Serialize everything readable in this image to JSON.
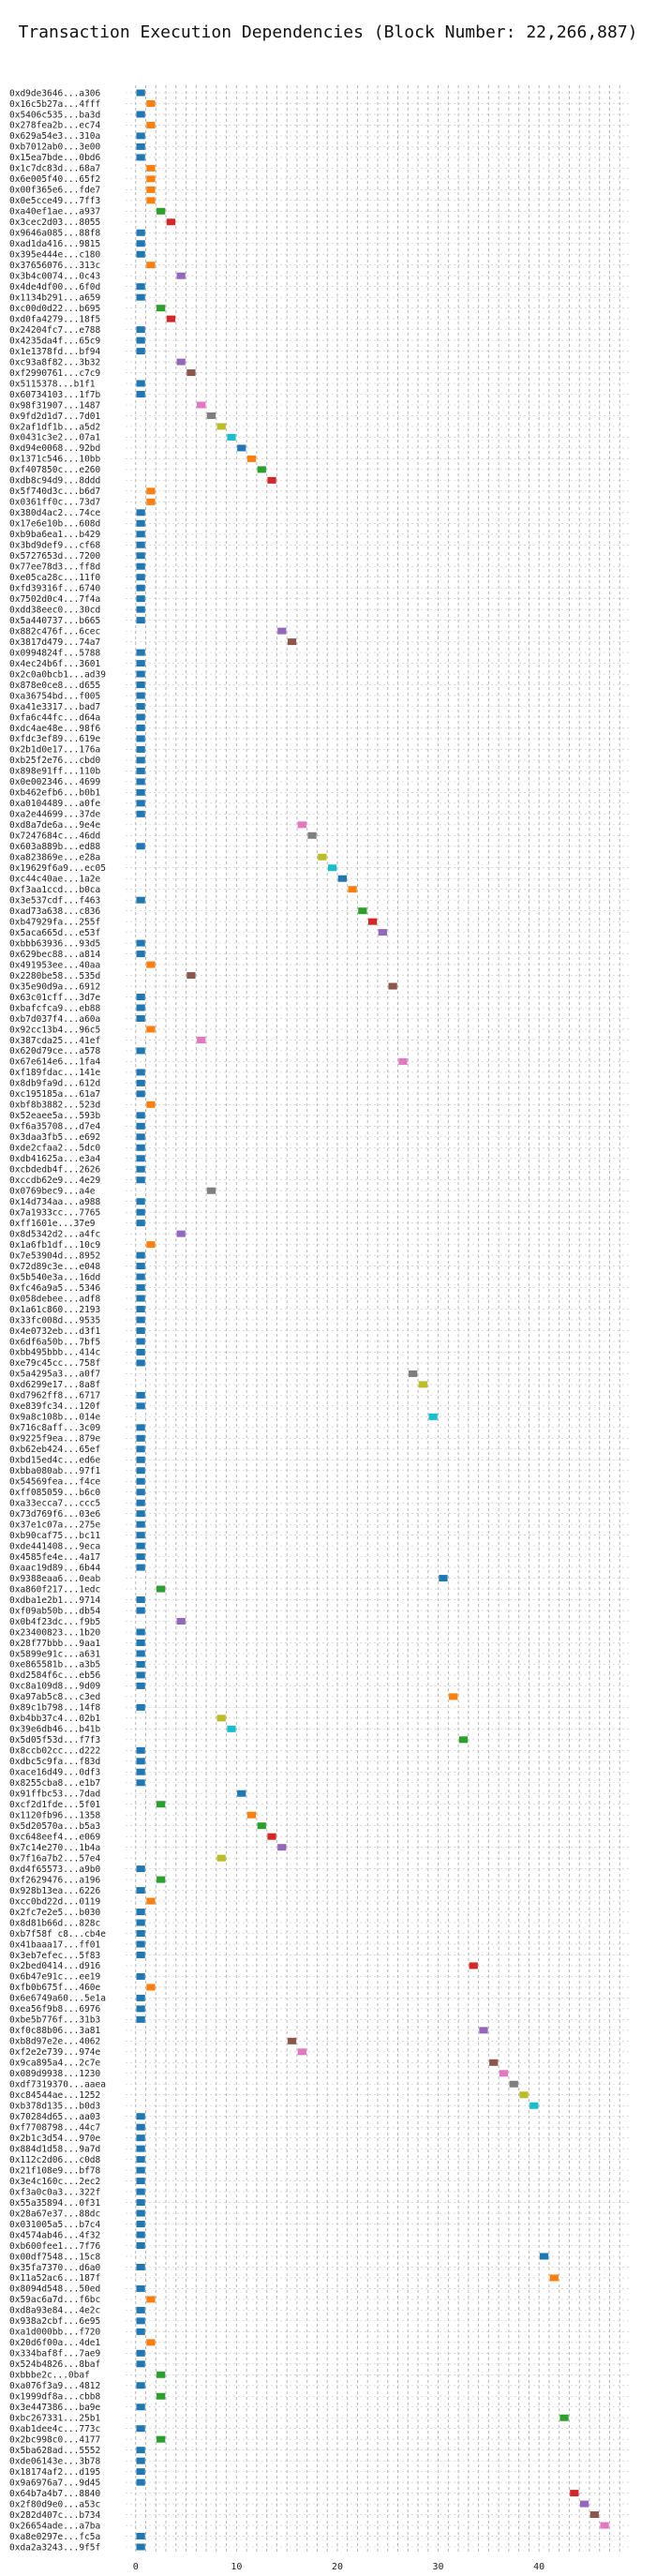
{
  "chart_data": {
    "type": "bar",
    "title": "Transaction Execution Dependencies (Block Number: 22,266,887)",
    "xlabel": "",
    "ylabel": "",
    "xlim": [
      -1,
      49
    ],
    "xticks": [
      0,
      10,
      20,
      30,
      40
    ],
    "grid": true,
    "palette": [
      "#1f77b4",
      "#ff7f0e",
      "#2ca02c",
      "#d62728",
      "#9467bd",
      "#8c564b",
      "#e377c2",
      "#7f7f7f",
      "#bcbd22",
      "#17becf"
    ],
    "transactions": [
      {
        "hash": "0xd9de3646...a306",
        "start": 0
      },
      {
        "hash": "0x16c5b27a...4fff",
        "start": 1
      },
      {
        "hash": "0x5406c535...ba3d",
        "start": 0
      },
      {
        "hash": "0x278fea2b...ec74",
        "start": 1
      },
      {
        "hash": "0x629a54e3...310a",
        "start": 0
      },
      {
        "hash": "0xb7012ab0...3e00",
        "start": 0
      },
      {
        "hash": "0x15ea7bde...0bd6",
        "start": 0
      },
      {
        "hash": "0x1c7dc83d...68a7",
        "start": 1
      },
      {
        "hash": "0x6e005f40...65f2",
        "start": 1
      },
      {
        "hash": "0x00f365e6...fde7",
        "start": 1
      },
      {
        "hash": "0x0e5cce49...7ff3",
        "start": 1
      },
      {
        "hash": "0xa40ef1ae...a937",
        "start": 2
      },
      {
        "hash": "0x3cec2d03...8055",
        "start": 3
      },
      {
        "hash": "0x9646a085...88f8",
        "start": 0
      },
      {
        "hash": "0xad1da416...9815",
        "start": 0
      },
      {
        "hash": "0x395e444e...c180",
        "start": 0
      },
      {
        "hash": "0x37656076...313c",
        "start": 1
      },
      {
        "hash": "0x3b4c0074...0c43",
        "start": 4
      },
      {
        "hash": "0x4de4df00...6f0d",
        "start": 0
      },
      {
        "hash": "0x1134b291...a659",
        "start": 0
      },
      {
        "hash": "0xc00d0d22...b695",
        "start": 2
      },
      {
        "hash": "0xd0fa4279...18f5",
        "start": 3
      },
      {
        "hash": "0x24204fc7...e788",
        "start": 0
      },
      {
        "hash": "0x4235da4f...65c9",
        "start": 0
      },
      {
        "hash": "0x1e1378fd...bf94",
        "start": 0
      },
      {
        "hash": "0xc93a8f82...3b32",
        "start": 4
      },
      {
        "hash": "0xf2990761...c7c9",
        "start": 5
      },
      {
        "hash": "0x5115378...b1f1",
        "start": 0
      },
      {
        "hash": "0x60734103...1f7b",
        "start": 0
      },
      {
        "hash": "0x98f31907...1487",
        "start": 6
      },
      {
        "hash": "0x9fd2d1d7...7d01",
        "start": 7
      },
      {
        "hash": "0x2af1df1b...a5d2",
        "start": 8
      },
      {
        "hash": "0x0431c3e2...07a1",
        "start": 9
      },
      {
        "hash": "0xd94e0068...92bd",
        "start": 10
      },
      {
        "hash": "0x1371c546...10bb",
        "start": 11
      },
      {
        "hash": "0xf407850c...e260",
        "start": 12
      },
      {
        "hash": "0xdb8c94d9...8ddd",
        "start": 13
      },
      {
        "hash": "0x5f740d3c...b6d7",
        "start": 1
      },
      {
        "hash": "0x0361ff0c...73d7",
        "start": 1
      },
      {
        "hash": "0x380d4ac2...74ce",
        "start": 0
      },
      {
        "hash": "0x17e6e10b...608d",
        "start": 0
      },
      {
        "hash": "0xb9ba6ea1...b429",
        "start": 0
      },
      {
        "hash": "0x3bd9def9...cf68",
        "start": 0
      },
      {
        "hash": "0x5727653d...7200",
        "start": 0
      },
      {
        "hash": "0x77ee78d3...ff8d",
        "start": 0
      },
      {
        "hash": "0xe05ca28c...11f0",
        "start": 0
      },
      {
        "hash": "0xfd39316f...6740",
        "start": 0
      },
      {
        "hash": "0x7502d0c4...7f4a",
        "start": 0
      },
      {
        "hash": "0xdd38eec0...30cd",
        "start": 0
      },
      {
        "hash": "0x5a440737...b665",
        "start": 0
      },
      {
        "hash": "0x882c476f...6cec",
        "start": 14
      },
      {
        "hash": "0x3817d479...74a7",
        "start": 15
      },
      {
        "hash": "0x0994824f...5788",
        "start": 0
      },
      {
        "hash": "0x4ec24b6f...3601",
        "start": 0
      },
      {
        "hash": "0x2c0a0bcb1...ad39",
        "start": 0
      },
      {
        "hash": "0x878e0ce8...d655",
        "start": 0
      },
      {
        "hash": "0xa36754bd...f005",
        "start": 0
      },
      {
        "hash": "0xa41e3317...bad7",
        "start": 0
      },
      {
        "hash": "0xfa6c44fc...d64a",
        "start": 0
      },
      {
        "hash": "0xdc4ae48e...98f6",
        "start": 0
      },
      {
        "hash": "0xfdc3ef89...619e",
        "start": 0
      },
      {
        "hash": "0x2b1d0e17...176a",
        "start": 0
      },
      {
        "hash": "0xb25f2e76...cbd0",
        "start": 0
      },
      {
        "hash": "0x898e91ff...110b",
        "start": 0
      },
      {
        "hash": "0x0e002346...4699",
        "start": 0
      },
      {
        "hash": "0xb462efb6...b0b1",
        "start": 0
      },
      {
        "hash": "0xa0104489...a0fe",
        "start": 0
      },
      {
        "hash": "0xa2e44699...37de",
        "start": 0
      },
      {
        "hash": "0xd8a7de6a...9e4e",
        "start": 16
      },
      {
        "hash": "0x7247684c...46dd",
        "start": 17
      },
      {
        "hash": "0x603a889b...ed88",
        "start": 0
      },
      {
        "hash": "0xa823869e...e28a",
        "start": 18
      },
      {
        "hash": "0x19629f6a9...ec05",
        "start": 19
      },
      {
        "hash": "0xc44c40ae...1a2e",
        "start": 20
      },
      {
        "hash": "0xf3aa1ccd...b0ca",
        "start": 21
      },
      {
        "hash": "0x3e537cdf...f463",
        "start": 0
      },
      {
        "hash": "0xad73a638...c836",
        "start": 22
      },
      {
        "hash": "0xb47929fa...255f",
        "start": 23
      },
      {
        "hash": "0x5aca665d...e53f",
        "start": 24
      },
      {
        "hash": "0xbbb63936...93d5",
        "start": 0
      },
      {
        "hash": "0x629bec88...a814",
        "start": 0
      },
      {
        "hash": "0x491953ee...40aa",
        "start": 1
      },
      {
        "hash": "0x2280be58...535d",
        "start": 5
      },
      {
        "hash": "0x35e90d9a...6912",
        "start": 25
      },
      {
        "hash": "0x63c01cff...3d7e",
        "start": 0
      },
      {
        "hash": "0xbafcfca9...eb88",
        "start": 0
      },
      {
        "hash": "0xb7d037f4...a60a",
        "start": 0
      },
      {
        "hash": "0x92cc13b4...96c5",
        "start": 1
      },
      {
        "hash": "0x387cda25...41ef",
        "start": 6
      },
      {
        "hash": "0x620d79ce...a578",
        "start": 0
      },
      {
        "hash": "0x67e614e6...1fa4",
        "start": 26
      },
      {
        "hash": "0xf189fdac...141e",
        "start": 0
      },
      {
        "hash": "0x8db9fa9d...612d",
        "start": 0
      },
      {
        "hash": "0xc195185a...61a7",
        "start": 0
      },
      {
        "hash": "0xbf8b3882...523d",
        "start": 1
      },
      {
        "hash": "0x52eaee5a...593b",
        "start": 0
      },
      {
        "hash": "0xf6a35708...d7e4",
        "start": 0
      },
      {
        "hash": "0x3daa3fb5...e692",
        "start": 0
      },
      {
        "hash": "0xde2cfaa2...5dc0",
        "start": 0
      },
      {
        "hash": "0xdb41625a...e3a4",
        "start": 0
      },
      {
        "hash": "0xcbdedb4f...2626",
        "start": 0
      },
      {
        "hash": "0xccdb62e9...4e29",
        "start": 0
      },
      {
        "hash": "0x0769bec9...a4e",
        "start": 7
      },
      {
        "hash": "0x14d734aa...a988",
        "start": 0
      },
      {
        "hash": "0x7a1933cc...7765",
        "start": 0
      },
      {
        "hash": "0xff1601e...37e9",
        "start": 0
      },
      {
        "hash": "0x8d5342d2...a4fc",
        "start": 4
      },
      {
        "hash": "0x1a6fb1df...10c9",
        "start": 1
      },
      {
        "hash": "0x7e53904d...8952",
        "start": 0
      },
      {
        "hash": "0x72d89c3e...e048",
        "start": 0
      },
      {
        "hash": "0x5b540e3a...16dd",
        "start": 0
      },
      {
        "hash": "0xfc46a9a5...5346",
        "start": 0
      },
      {
        "hash": "0x058debee...adf8",
        "start": 0
      },
      {
        "hash": "0x1a61c860...2193",
        "start": 0
      },
      {
        "hash": "0x33fc008d...9535",
        "start": 0
      },
      {
        "hash": "0x4e0732eb...d3f1",
        "start": 0
      },
      {
        "hash": "0x6df6a50b...7bf5",
        "start": 0
      },
      {
        "hash": "0xbb495bbb...414c",
        "start": 0
      },
      {
        "hash": "0xe79c45cc...758f",
        "start": 0
      },
      {
        "hash": "0x5a4295a3...a0f7",
        "start": 27
      },
      {
        "hash": "0xd6299e17...8a8f",
        "start": 28
      },
      {
        "hash": "0xd7962ff8...6717",
        "start": 0
      },
      {
        "hash": "0xe839fc34...120f",
        "start": 0
      },
      {
        "hash": "0x9a8c108b...014e",
        "start": 29
      },
      {
        "hash": "0x716c8aff...3c09",
        "start": 0
      },
      {
        "hash": "0x9225f9ea...879e",
        "start": 0
      },
      {
        "hash": "0xb62eb424...65ef",
        "start": 0
      },
      {
        "hash": "0xbd15ed4c...ed6e",
        "start": 0
      },
      {
        "hash": "0xbba080ab...97f1",
        "start": 0
      },
      {
        "hash": "0x54569fea...f4ce",
        "start": 0
      },
      {
        "hash": "0xff085059...b6c0",
        "start": 0
      },
      {
        "hash": "0xa33ecca7...ccc5",
        "start": 0
      },
      {
        "hash": "0x73d769f6...03e6",
        "start": 0
      },
      {
        "hash": "0x37e1c07a...275e",
        "start": 0
      },
      {
        "hash": "0xb90caf75...bc11",
        "start": 0
      },
      {
        "hash": "0xde441408...9eca",
        "start": 0
      },
      {
        "hash": "0x4585fe4e...4a17",
        "start": 0
      },
      {
        "hash": "0xaac19d89...6b44",
        "start": 0
      },
      {
        "hash": "0x9388eaa6...0eab",
        "start": 30
      },
      {
        "hash": "0xa860f217...1edc",
        "start": 2
      },
      {
        "hash": "0xdba1e2b1...9714",
        "start": 0
      },
      {
        "hash": "0xf09ab50b...db54",
        "start": 0
      },
      {
        "hash": "0x0b4f23dc...f9b5",
        "start": 4
      },
      {
        "hash": "0x23400823...1b20",
        "start": 0
      },
      {
        "hash": "0x28f77bbb...9aa1",
        "start": 0
      },
      {
        "hash": "0x5899e91c...a631",
        "start": 0
      },
      {
        "hash": "0xe865581b...a3b5",
        "start": 0
      },
      {
        "hash": "0xd2584f6c...eb56",
        "start": 0
      },
      {
        "hash": "0xc8a109d8...9d09",
        "start": 0
      },
      {
        "hash": "0xa97ab5c8...c3ed",
        "start": 31
      },
      {
        "hash": "0x89c1b798...14f8",
        "start": 0
      },
      {
        "hash": "0xb4bb37c4...02b1",
        "start": 8
      },
      {
        "hash": "0x39e6db46...b41b",
        "start": 9
      },
      {
        "hash": "0x5d05f53d...f7f3",
        "start": 32
      },
      {
        "hash": "0x8ccb02cc...d222",
        "start": 0
      },
      {
        "hash": "0xdbc5c9fa...f83d",
        "start": 0
      },
      {
        "hash": "0xace16d49...0df3",
        "start": 0
      },
      {
        "hash": "0x8255cba8...e1b7",
        "start": 0
      },
      {
        "hash": "0x91ffbc53...7dad",
        "start": 10
      },
      {
        "hash": "0xcf2d1fde...5f01",
        "start": 2
      },
      {
        "hash": "0x1120fb96...1358",
        "start": 11
      },
      {
        "hash": "0x5d20570a...b5a3",
        "start": 12
      },
      {
        "hash": "0xc648eef4...e069",
        "start": 13
      },
      {
        "hash": "0x7c14e270...1b4a",
        "start": 14
      },
      {
        "hash": "0x7f16a7b2...57e4",
        "start": 8
      },
      {
        "hash": "0xd4f65573...a9b0",
        "start": 0
      },
      {
        "hash": "0xf2629476...a196",
        "start": 2
      },
      {
        "hash": "0x928b13ea...6226",
        "start": 0
      },
      {
        "hash": "0xcc0bd22d...0119",
        "start": 1
      },
      {
        "hash": "0x2fc7e2e5...b030",
        "start": 0
      },
      {
        "hash": "0x8d81b66d...828c",
        "start": 0
      },
      {
        "hash": "0xb7f58f c8...cb4e",
        "start": 0
      },
      {
        "hash": "0x41baaa17...ff01",
        "start": 0
      },
      {
        "hash": "0x3eb7efec...5f83",
        "start": 0
      },
      {
        "hash": "0x2bed0414...d916",
        "start": 33
      },
      {
        "hash": "0x6b47e91c...ee19",
        "start": 0
      },
      {
        "hash": "0xfb0b675f...460e",
        "start": 1
      },
      {
        "hash": "0x6e6749a60...5e1a",
        "start": 0
      },
      {
        "hash": "0xea56f9b8...6976",
        "start": 0
      },
      {
        "hash": "0xbe5b776f...31b3",
        "start": 0
      },
      {
        "hash": "0xf0c88b06...3a81",
        "start": 34
      },
      {
        "hash": "0xb8d97e2e...4062",
        "start": 15
      },
      {
        "hash": "0xf2e2e739...974e",
        "start": 16
      },
      {
        "hash": "0x9ca895a4...2c7e",
        "start": 35
      },
      {
        "hash": "0x089d9938...1230",
        "start": 36
      },
      {
        "hash": "0xdf7319370...aaea",
        "start": 37
      },
      {
        "hash": "0xc84544ae...1252",
        "start": 38
      },
      {
        "hash": "0xb378d135...b0d3",
        "start": 39
      },
      {
        "hash": "0x70284d65...aa03",
        "start": 0
      },
      {
        "hash": "0xf7708798...44c7",
        "start": 0
      },
      {
        "hash": "0x2b1c3d54...970e",
        "start": 0
      },
      {
        "hash": "0x884d1d58...9a7d",
        "start": 0
      },
      {
        "hash": "0x112c2d06...c0d8",
        "start": 0
      },
      {
        "hash": "0x21f108e9...bf78",
        "start": 0
      },
      {
        "hash": "0x3e4c160c...2ec2",
        "start": 0
      },
      {
        "hash": "0xf3a0c0a3...322f",
        "start": 0
      },
      {
        "hash": "0x55a35894...0f31",
        "start": 0
      },
      {
        "hash": "0x28a67e37...88dc",
        "start": 0
      },
      {
        "hash": "0x031005a5...b7c4",
        "start": 0
      },
      {
        "hash": "0x4574ab46...4f32",
        "start": 0
      },
      {
        "hash": "0xb600fee1...7f76",
        "start": 0
      },
      {
        "hash": "0x00df7548...15c8",
        "start": 40
      },
      {
        "hash": "0x35fa7370...d6a0",
        "start": 0
      },
      {
        "hash": "0x11a52ac6...187f",
        "start": 41
      },
      {
        "hash": "0x8094d548...50ed",
        "start": 0
      },
      {
        "hash": "0x59ac6a7d...f6bc",
        "start": 1
      },
      {
        "hash": "0xd8a93e84...4e2c",
        "start": 0
      },
      {
        "hash": "0x938a2cbf...6e95",
        "start": 0
      },
      {
        "hash": "0xa1d000bb...f720",
        "start": 0
      },
      {
        "hash": "0x20d6f00a...4de1",
        "start": 1
      },
      {
        "hash": "0x334baf8f...7ae9",
        "start": 0
      },
      {
        "hash": "0x524b4826...8baf",
        "start": 0
      },
      {
        "hash": "0xbbbe2c...0baf",
        "start": 2
      },
      {
        "hash": "0xa076f3a9...4812",
        "start": 0
      },
      {
        "hash": "0x1999df8a...cbb8",
        "start": 2
      },
      {
        "hash": "0x3e447386...ba9e",
        "start": 0
      },
      {
        "hash": "0xbc267331...25b1",
        "start": 42
      },
      {
        "hash": "0xab1dee4c...773c",
        "start": 0
      },
      {
        "hash": "0x2bc998c0...4177",
        "start": 2
      },
      {
        "hash": "0x5ba628ad...5552",
        "start": 0
      },
      {
        "hash": "0xde06143e...3b78",
        "start": 0
      },
      {
        "hash": "0x18174af2...d195",
        "start": 0
      },
      {
        "hash": "0x9a6976a7...9d45",
        "start": 0
      },
      {
        "hash": "0x64b7a4b7...8840",
        "start": 43
      },
      {
        "hash": "0x2f80d9e0...a53c",
        "start": 44
      },
      {
        "hash": "0x282d407c...b734",
        "start": 45
      },
      {
        "hash": "0x26654ade...a7ba",
        "start": 46
      },
      {
        "hash": "0xa8e0297e...fc5a",
        "start": 0
      },
      {
        "hash": "0xda2a3243...9f5f",
        "start": 0
      }
    ]
  }
}
